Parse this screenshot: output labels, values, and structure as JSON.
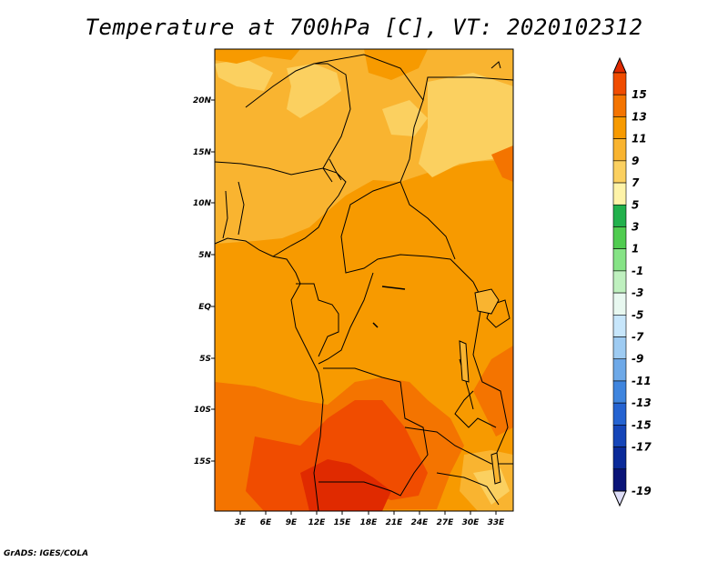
{
  "title": "Temperature at 700hPa [C], VT: 2020102312",
  "footer": "GrADS: IGES/COLA",
  "map": {
    "lat_ticks": [
      "20N",
      "15N",
      "10N",
      "5N",
      "EQ",
      "5S",
      "10S",
      "15S"
    ],
    "lon_ticks": [
      "3E",
      "6E",
      "9E",
      "12E",
      "15E",
      "18E",
      "21E",
      "24E",
      "27E",
      "30E",
      "33E"
    ]
  },
  "colorbar": {
    "labels": [
      "15",
      "13",
      "11",
      "9",
      "7",
      "5",
      "3",
      "1",
      "-1",
      "-3",
      "-5",
      "-7",
      "-9",
      "-11",
      "-13",
      "-15",
      "-17",
      "-19"
    ],
    "colors": [
      "#e02a00",
      "#f04c00",
      "#f47400",
      "#f79a00",
      "#f9b430",
      "#fbd060",
      "#fef3a8",
      "#22b14c",
      "#50cc50",
      "#86e386",
      "#bff0bf",
      "#e8f8f0",
      "#c7e6fb",
      "#9ecbf2",
      "#6ea9e8",
      "#3f85de",
      "#2563d1",
      "#1545b8",
      "#0a2a99",
      "#0a1478",
      "#ddddf7"
    ]
  },
  "field_colors": {
    "light": "#fbd060",
    "mid": "#f9b430",
    "main": "#f79a00",
    "warm": "#f47400",
    "hot": "#f04c00",
    "hottest": "#e02a00"
  }
}
